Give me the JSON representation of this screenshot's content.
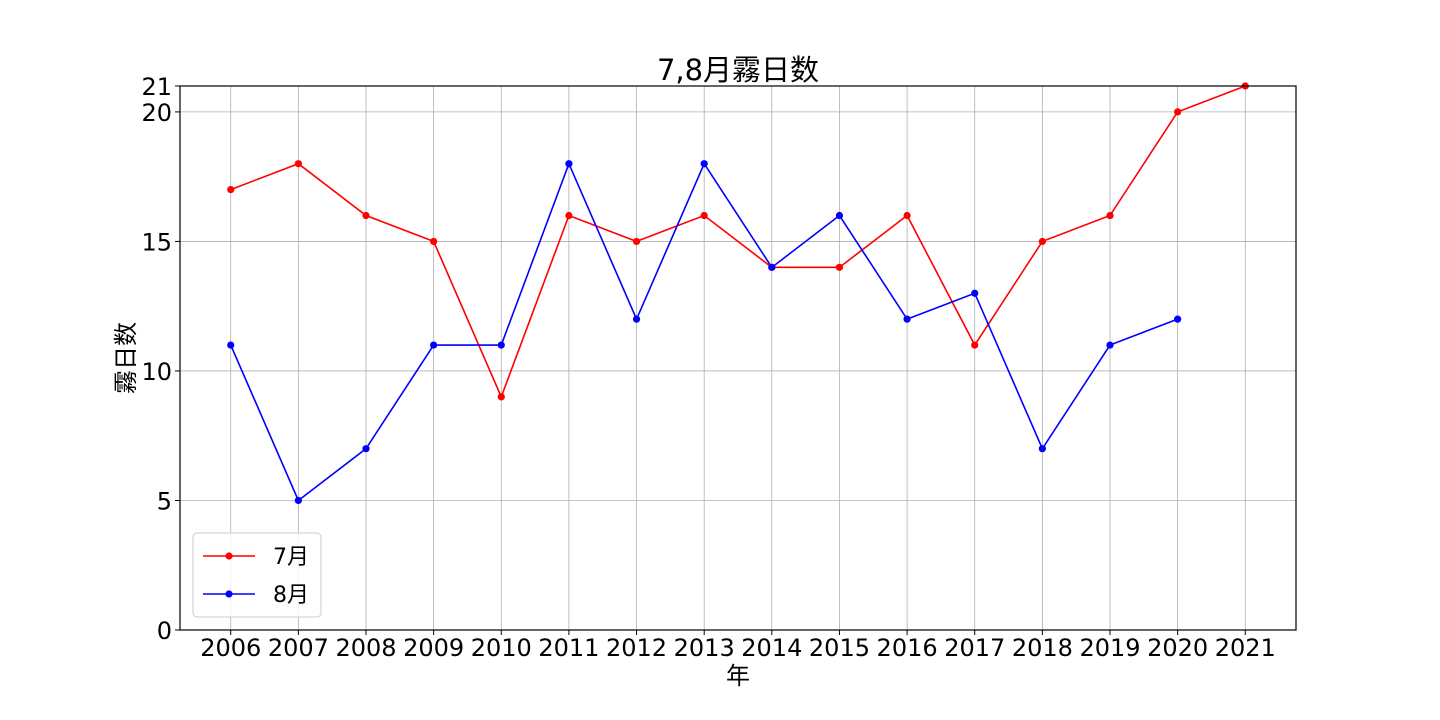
{
  "chart_data": {
    "type": "line",
    "title": "7,8月霧日数",
    "xlabel": "年",
    "ylabel": "霧日数",
    "x": [
      2006,
      2007,
      2008,
      2009,
      2010,
      2011,
      2012,
      2013,
      2014,
      2015,
      2016,
      2017,
      2018,
      2019,
      2020,
      2021
    ],
    "xticks": [
      "2006",
      "2007",
      "2008",
      "2009",
      "2010",
      "2011",
      "2012",
      "2013",
      "2014",
      "2015",
      "2016",
      "2017",
      "2018",
      "2019",
      "2020",
      "2021"
    ],
    "yticks": [
      "0",
      "5",
      "10",
      "15",
      "20",
      "21"
    ],
    "ylim": [
      0,
      21
    ],
    "grid": true,
    "legend_position": "lower-left",
    "series": [
      {
        "name": "7月",
        "color": "#ff0000",
        "values": [
          17,
          18,
          16,
          15,
          9,
          16,
          15,
          16,
          14,
          14,
          16,
          11,
          15,
          16,
          20,
          21
        ]
      },
      {
        "name": "8月",
        "color": "#0000ff",
        "values": [
          11,
          5,
          7,
          11,
          11,
          18,
          12,
          18,
          14,
          16,
          12,
          13,
          7,
          11,
          12,
          null
        ]
      }
    ]
  }
}
